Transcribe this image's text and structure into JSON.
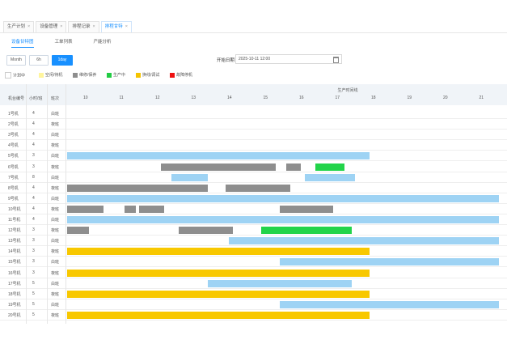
{
  "tabs": [
    {
      "label": "生产计划",
      "active": false
    },
    {
      "label": "设备管理",
      "active": false
    },
    {
      "label": "排程记录",
      "active": false
    },
    {
      "label": "排程甘特",
      "active": true
    }
  ],
  "subtabs": [
    {
      "label": "设备甘特图",
      "active": true
    },
    {
      "label": "工单列表",
      "active": false
    },
    {
      "label": "产能分析",
      "active": false
    }
  ],
  "toolbar": {
    "buttons": [
      {
        "label": "Month",
        "primary": false
      },
      {
        "label": "6h",
        "primary": false
      },
      {
        "label": "1day",
        "primary": true
      }
    ],
    "date_label": "开始日期",
    "date_value": "2025-10-11 12:00"
  },
  "legend": [
    {
      "label": "计划中",
      "color": "#ffffff"
    },
    {
      "label": "空闲/待机",
      "color": "#fff59d"
    },
    {
      "label": "维修/保养",
      "color": "#8e8e8e"
    },
    {
      "label": "生产中",
      "color": "#22cc44"
    },
    {
      "label": "换线/调试",
      "color": "#f5c400"
    },
    {
      "label": "故障停机",
      "color": "#ee1111"
    }
  ],
  "columns": {
    "machine": "机台编号",
    "hours": "小时/班",
    "shift": "班次"
  },
  "timeline": {
    "group_label": "生产时间线",
    "ticks": [
      "10",
      "11",
      "12",
      "13",
      "14",
      "15",
      "16",
      "17",
      "18",
      "19",
      "20",
      "21"
    ]
  },
  "rows": [
    {
      "machine": "1号机",
      "hours": "4",
      "shift": "白班",
      "bars": []
    },
    {
      "machine": "2号机",
      "hours": "4",
      "shift": "夜班",
      "bars": []
    },
    {
      "machine": "3号机",
      "hours": "4",
      "shift": "白班",
      "bars": []
    },
    {
      "machine": "4号机",
      "hours": "4",
      "shift": "夜班",
      "bars": []
    },
    {
      "machine": "5号机",
      "hours": "3",
      "shift": "白班",
      "bars": [
        {
          "start": 10.0,
          "end": 18.4,
          "status": "running"
        }
      ]
    },
    {
      "machine": "6号机",
      "hours": "3",
      "shift": "夜班",
      "bars": [
        {
          "start": 12.6,
          "end": 15.8,
          "status": "maint"
        },
        {
          "start": 16.1,
          "end": 16.5,
          "status": "maint"
        },
        {
          "start": 16.9,
          "end": 17.7,
          "status": "green"
        }
      ]
    },
    {
      "machine": "7号机",
      "hours": "8",
      "shift": "白班",
      "bars": [
        {
          "start": 12.9,
          "end": 13.9,
          "status": "running"
        },
        {
          "start": 16.6,
          "end": 18.0,
          "status": "running"
        }
      ]
    },
    {
      "machine": "8号机",
      "hours": "4",
      "shift": "夜班",
      "bars": [
        {
          "start": 10.0,
          "end": 13.9,
          "status": "maint"
        },
        {
          "start": 14.4,
          "end": 16.2,
          "status": "maint"
        }
      ]
    },
    {
      "machine": "9号机",
      "hours": "4",
      "shift": "白班",
      "bars": [
        {
          "start": 10.0,
          "end": 22.0,
          "status": "running"
        }
      ]
    },
    {
      "machine": "10号机",
      "hours": "4",
      "shift": "夜班",
      "bars": [
        {
          "start": 10.0,
          "end": 11.0,
          "status": "maint"
        },
        {
          "start": 11.6,
          "end": 11.9,
          "status": "maint"
        },
        {
          "start": 12.0,
          "end": 12.7,
          "status": "maint"
        },
        {
          "start": 15.9,
          "end": 17.4,
          "status": "maint"
        }
      ]
    },
    {
      "machine": "11号机",
      "hours": "4",
      "shift": "白班",
      "bars": [
        {
          "start": 10.0,
          "end": 22.0,
          "status": "running"
        }
      ]
    },
    {
      "machine": "12号机",
      "hours": "3",
      "shift": "夜班",
      "bars": [
        {
          "start": 10.0,
          "end": 10.6,
          "status": "maint"
        },
        {
          "start": 13.1,
          "end": 14.6,
          "status": "maint"
        },
        {
          "start": 15.4,
          "end": 17.9,
          "status": "green"
        }
      ]
    },
    {
      "machine": "13号机",
      "hours": "3",
      "shift": "白班",
      "bars": [
        {
          "start": 14.5,
          "end": 22.0,
          "status": "running"
        }
      ]
    },
    {
      "machine": "14号机",
      "hours": "3",
      "shift": "夜班",
      "bars": [
        {
          "start": 10.0,
          "end": 18.4,
          "status": "changeover"
        }
      ]
    },
    {
      "machine": "15号机",
      "hours": "3",
      "shift": "白班",
      "bars": [
        {
          "start": 15.9,
          "end": 22.0,
          "status": "running"
        }
      ]
    },
    {
      "machine": "16号机",
      "hours": "3",
      "shift": "夜班",
      "bars": [
        {
          "start": 10.0,
          "end": 18.4,
          "status": "changeover"
        }
      ]
    },
    {
      "machine": "17号机",
      "hours": "5",
      "shift": "白班",
      "bars": [
        {
          "start": 13.9,
          "end": 17.9,
          "status": "running"
        }
      ]
    },
    {
      "machine": "18号机",
      "hours": "5",
      "shift": "夜班",
      "bars": [
        {
          "start": 10.0,
          "end": 18.4,
          "status": "changeover"
        }
      ]
    },
    {
      "machine": "19号机",
      "hours": "5",
      "shift": "白班",
      "bars": [
        {
          "start": 15.9,
          "end": 22.0,
          "status": "running"
        }
      ]
    },
    {
      "machine": "20号机",
      "hours": "5",
      "shift": "夜班",
      "bars": [
        {
          "start": 10.0,
          "end": 18.4,
          "status": "changeover"
        }
      ]
    }
  ],
  "status_colors": {
    "running": "#9ed3f4",
    "maint": "#8e8e8e",
    "green": "#22d44a",
    "changeover": "#f8c800"
  }
}
